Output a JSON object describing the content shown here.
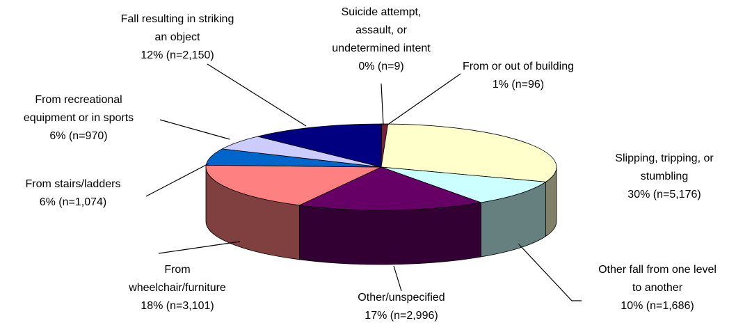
{
  "chart_data": {
    "type": "pie",
    "categories": [
      "Suicide attempt,\nassault, or\nundetermined intent",
      "From or out of building",
      "Slipping, tripping, or\nstumbling",
      "Other fall from one level\nto another",
      "Other/unspecified",
      "From\nwheelchair/furniture",
      "From stairs/ladders",
      "From recreational\nequipment or in sports",
      "Fall resulting in striking\nan object"
    ],
    "values": [
      0,
      1,
      30,
      10,
      17,
      18,
      6,
      6,
      12
    ],
    "counts": [
      9,
      96,
      5176,
      1686,
      2996,
      3101,
      1074,
      970,
      2150
    ],
    "value_labels": [
      "0% (n=9)",
      "1% (n=96)",
      "30% (n=5,176)",
      "10% (n=1,686)",
      "17% (n=2,996)",
      "18% (n=3,101)",
      "6% (n=1,074)",
      "6% (n=970)",
      "12% (n=2,150)"
    ],
    "colors": [
      "#993366",
      "#7a1f3d",
      "#ffffcc",
      "#ccffff",
      "#660066",
      "#ff8080",
      "#0066cc",
      "#ccccff",
      "#000080"
    ]
  }
}
